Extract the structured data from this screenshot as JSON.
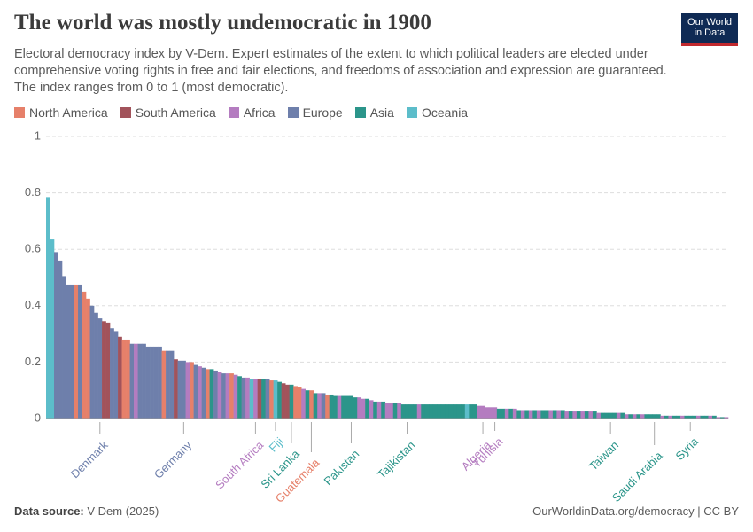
{
  "header": {
    "title": "The world was mostly undemocratic in 1900",
    "subtitle": "Electoral democracy index by V-Dem. Expert estimates of the extent to which political leaders are elected under comprehensive voting rights in free and fair elections, and freedoms of association and expression are guaranteed. The index ranges from 0 to 1 (most democratic).",
    "logo": [
      "Our World",
      "in Data"
    ]
  },
  "chart_data": {
    "type": "bar",
    "legend": [
      {
        "name": "North America",
        "color": "#e6806a"
      },
      {
        "name": "South America",
        "color": "#a2535b"
      },
      {
        "name": "Africa",
        "color": "#b47cc0"
      },
      {
        "name": "Europe",
        "color": "#6e7fab"
      },
      {
        "name": "Asia",
        "color": "#2b958a"
      },
      {
        "name": "Oceania",
        "color": "#5cbdca"
      }
    ],
    "categories": [
      null,
      null,
      null,
      null,
      null,
      null,
      null,
      null,
      null,
      null,
      null,
      null,
      null,
      "Denmark",
      null,
      null,
      null,
      null,
      null,
      null,
      null,
      null,
      null,
      null,
      null,
      null,
      null,
      null,
      null,
      null,
      null,
      null,
      null,
      null,
      "Germany",
      null,
      null,
      null,
      null,
      null,
      null,
      null,
      null,
      null,
      null,
      null,
      null,
      null,
      null,
      null,
      null,
      null,
      "South Africa",
      null,
      null,
      null,
      null,
      "Fiji",
      null,
      null,
      null,
      "Sri Lanka",
      null,
      null,
      null,
      null,
      "Guatemala",
      null,
      null,
      null,
      null,
      null,
      null,
      null,
      null,
      null,
      "Pakistan",
      null,
      null,
      null,
      null,
      null,
      null,
      null,
      null,
      null,
      null,
      null,
      null,
      null,
      "Tajikistan",
      null,
      null,
      null,
      null,
      null,
      null,
      null,
      null,
      null,
      null,
      null,
      null,
      null,
      null,
      null,
      null,
      null,
      null,
      "Algeria",
      null,
      null,
      "Tunisia",
      null,
      null,
      null,
      null,
      null,
      null,
      null,
      null,
      null,
      null,
      null,
      null,
      null,
      null,
      null,
      null,
      null,
      null,
      null,
      null,
      null,
      null,
      null,
      null,
      null,
      null,
      null,
      null,
      "Taiwan",
      null,
      null,
      null,
      null,
      null,
      null,
      null,
      null,
      null,
      null,
      "Saudi Arabia",
      null,
      null,
      null,
      null,
      null,
      null,
      null,
      null,
      "Syria",
      null,
      null,
      null,
      null,
      null,
      null,
      null,
      null,
      null
    ],
    "values": [
      0.785,
      0.635,
      0.59,
      0.56,
      0.505,
      0.475,
      0.475,
      0.475,
      0.475,
      0.45,
      0.425,
      0.4,
      0.375,
      0.355,
      0.345,
      0.34,
      0.32,
      0.31,
      0.29,
      0.28,
      0.28,
      0.265,
      0.265,
      0.265,
      0.265,
      0.255,
      0.255,
      0.255,
      0.255,
      0.24,
      0.24,
      0.24,
      0.21,
      0.205,
      0.205,
      0.2,
      0.2,
      0.19,
      0.185,
      0.18,
      0.175,
      0.175,
      0.17,
      0.165,
      0.16,
      0.16,
      0.16,
      0.155,
      0.15,
      0.145,
      0.145,
      0.14,
      0.14,
      0.14,
      0.14,
      0.14,
      0.135,
      0.135,
      0.13,
      0.125,
      0.12,
      0.12,
      0.115,
      0.11,
      0.105,
      0.1,
      0.1,
      0.09,
      0.09,
      0.09,
      0.085,
      0.085,
      0.08,
      0.08,
      0.08,
      0.08,
      0.08,
      0.075,
      0.075,
      0.07,
      0.07,
      0.065,
      0.06,
      0.06,
      0.06,
      0.055,
      0.055,
      0.055,
      0.055,
      0.05,
      0.05,
      0.05,
      0.05,
      0.05,
      0.05,
      0.05,
      0.05,
      0.05,
      0.05,
      0.05,
      0.05,
      0.05,
      0.05,
      0.05,
      0.05,
      0.05,
      0.05,
      0.05,
      0.045,
      0.045,
      0.04,
      0.04,
      0.04,
      0.035,
      0.035,
      0.035,
      0.035,
      0.035,
      0.03,
      0.03,
      0.03,
      0.03,
      0.03,
      0.03,
      0.03,
      0.03,
      0.03,
      0.03,
      0.03,
      0.03,
      0.025,
      0.025,
      0.025,
      0.025,
      0.025,
      0.025,
      0.025,
      0.025,
      0.02,
      0.02,
      0.02,
      0.02,
      0.02,
      0.02,
      0.02,
      0.015,
      0.015,
      0.015,
      0.015,
      0.015,
      0.015,
      0.015,
      0.015,
      0.015,
      0.01,
      0.01,
      0.01,
      0.01,
      0.01,
      0.01,
      0.01,
      0.01,
      0.01,
      0.01,
      0.01,
      0.01,
      0.01,
      0.01,
      0.005,
      0.005,
      0.005
    ],
    "colors": [
      "#5cbdca",
      "#5cbdca",
      "#6e7fab",
      "#6e7fab",
      "#6e7fab",
      "#6e7fab",
      "#6e7fab",
      "#e6806a",
      "#6e7fab",
      "#e6806a",
      "#e6806a",
      "#6e7fab",
      "#6e7fab",
      "#6e7fab",
      "#a2535b",
      "#a2535b",
      "#6e7fab",
      "#6e7fab",
      "#a2535b",
      "#e6806a",
      "#e6806a",
      "#6e7fab",
      "#b47cc0",
      "#6e7fab",
      "#6e7fab",
      "#6e7fab",
      "#6e7fab",
      "#6e7fab",
      "#6e7fab",
      "#e6806a",
      "#6e7fab",
      "#6e7fab",
      "#a2535b",
      "#6e7fab",
      "#6e7fab",
      "#b47cc0",
      "#e6806a",
      "#6e7fab",
      "#b47cc0",
      "#6e7fab",
      "#e6806a",
      "#2b958a",
      "#6e7fab",
      "#b47cc0",
      "#6e7fab",
      "#b47cc0",
      "#e6806a",
      "#b47cc0",
      "#2b958a",
      "#6e7fab",
      "#b47cc0",
      "#5cbdca",
      "#b47cc0",
      "#a2535b",
      "#2b958a",
      "#6e7fab",
      "#e6806a",
      "#5cbdca",
      "#2b958a",
      "#a2535b",
      "#a2535b",
      "#2b958a",
      "#e6806a",
      "#e6806a",
      "#b47cc0",
      "#2b958a",
      "#e6806a",
      "#2b958a",
      "#b47cc0",
      "#6e7fab",
      "#e6806a",
      "#2b958a",
      "#2b958a",
      "#b47cc0",
      "#2b958a",
      "#2b958a",
      "#2b958a",
      "#2b958a",
      "#b47cc0",
      "#b47cc0",
      "#2b958a",
      "#b47cc0",
      "#2b958a",
      "#b47cc0",
      "#2b958a",
      "#b47cc0",
      "#b47cc0",
      "#2b958a",
      "#b47cc0",
      "#2b958a",
      "#2b958a",
      "#2b958a",
      "#2b958a",
      "#b47cc0",
      "#2b958a",
      "#2b958a",
      "#2b958a",
      "#2b958a",
      "#2b958a",
      "#2b958a",
      "#2b958a",
      "#2b958a",
      "#2b958a",
      "#2b958a",
      "#2b958a",
      "#5cbdca",
      "#2b958a",
      "#2b958a",
      "#b47cc0",
      "#b47cc0",
      "#b47cc0",
      "#b47cc0",
      "#b47cc0",
      "#2b958a",
      "#2b958a",
      "#b47cc0",
      "#2b958a",
      "#b47cc0",
      "#2b958a",
      "#b47cc0",
      "#2b958a",
      "#b47cc0",
      "#2b958a",
      "#b47cc0",
      "#2b958a",
      "#2b958a",
      "#b47cc0",
      "#2b958a",
      "#b47cc0",
      "#2b958a",
      "#b47cc0",
      "#2b958a",
      "#b47cc0",
      "#2b958a",
      "#b47cc0",
      "#2b958a",
      "#b47cc0",
      "#2b958a",
      "#b47cc0",
      "#2b958a",
      "#2b958a",
      "#2b958a",
      "#2b958a",
      "#b47cc0",
      "#2b958a",
      "#b47cc0",
      "#2b958a",
      "#b47cc0",
      "#2b958a",
      "#b47cc0",
      "#2b958a",
      "#2b958a",
      "#2b958a",
      "#2b958a",
      "#b47cc0",
      "#2b958a",
      "#b47cc0",
      "#2b958a",
      "#2b958a",
      "#b47cc0",
      "#2b958a",
      "#2b958a",
      "#2b958a",
      "#b47cc0",
      "#2b958a",
      "#2b958a",
      "#b47cc0",
      "#2b958a",
      "#b47cc0",
      "#2b958a",
      "#b47cc0"
    ],
    "ylim": [
      0,
      1
    ],
    "yticks": [
      0,
      0.2,
      0.4,
      0.6,
      0.8,
      1
    ],
    "grid": true
  },
  "footer": {
    "source_label": "Data source:",
    "source": "V-Dem (2025)",
    "credit": "OurWorldinData.org/democracy | CC BY"
  }
}
